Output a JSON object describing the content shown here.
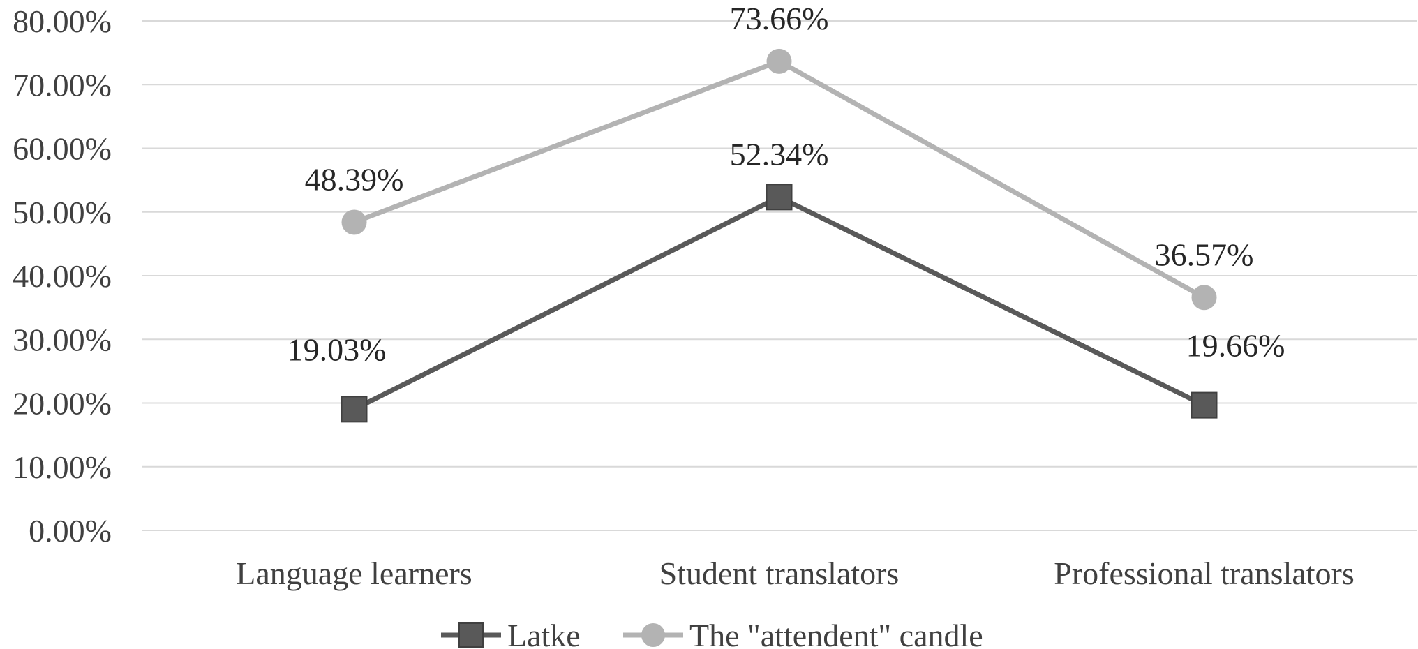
{
  "chart_data": {
    "type": "line",
    "categories": [
      "Language learners",
      "Student translators",
      "Professional translators"
    ],
    "series": [
      {
        "name": "Latke",
        "values": [
          19.03,
          52.34,
          19.66
        ],
        "value_labels": [
          "19.03%",
          "52.34%",
          "19.66%"
        ],
        "color": "#595959",
        "marker": "square"
      },
      {
        "name": "The \"attendent\" candle",
        "values": [
          48.39,
          73.66,
          36.57
        ],
        "value_labels": [
          "48.39%",
          "73.66%",
          "36.57%"
        ],
        "color": "#b3b3b3",
        "marker": "circle"
      }
    ],
    "ylim": [
      0,
      80
    ],
    "yticks": [
      0,
      10,
      20,
      30,
      40,
      50,
      60,
      70,
      80
    ],
    "ytick_labels": [
      "0.00%",
      "10.00%",
      "20.00%",
      "30.00%",
      "40.00%",
      "50.00%",
      "60.00%",
      "70.00%",
      "80.00%"
    ],
    "grid": true,
    "legend_position": "bottom",
    "title": "",
    "xlabel": "",
    "ylabel": ""
  }
}
